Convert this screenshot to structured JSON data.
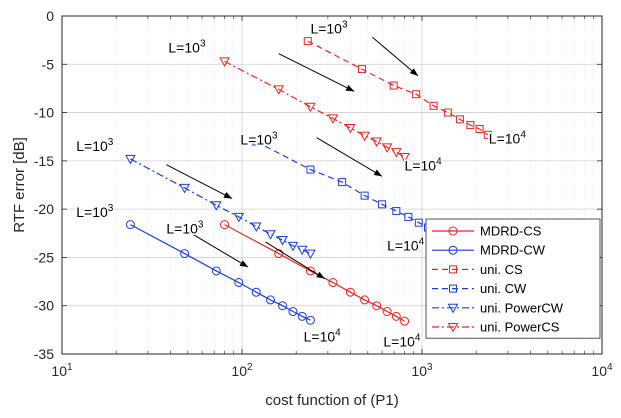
{
  "chart_data": {
    "type": "line",
    "title": "",
    "xlabel": "cost function of (P1)",
    "ylabel": "RTF error [dB]",
    "xscale": "log",
    "xlim": [
      10,
      10000
    ],
    "ylim": [
      -35,
      0
    ],
    "grid": true,
    "legend_position": "bottom-right",
    "x_ticks": [
      {
        "value": 10,
        "base": "10",
        "exp": "1"
      },
      {
        "value": 100,
        "base": "10",
        "exp": "2"
      },
      {
        "value": 1000,
        "base": "10",
        "exp": "3"
      },
      {
        "value": 10000,
        "base": "10",
        "exp": "4"
      }
    ],
    "y_ticks": [
      -35,
      -30,
      -25,
      -20,
      -15,
      -10,
      -5,
      0
    ],
    "series": [
      {
        "name": "MDRD-CS",
        "color": "#e8261f",
        "dash": "solid",
        "marker": "circle",
        "x": [
          80,
          160,
          240,
          320,
          400,
          480,
          560,
          640,
          720,
          800
        ],
        "y": [
          -21.6,
          -24.6,
          -26.4,
          -27.6,
          -28.6,
          -29.4,
          -30.0,
          -30.6,
          -31.1,
          -31.6
        ]
      },
      {
        "name": "MDRD-CW",
        "color": "#1a3fe0",
        "dash": "solid",
        "marker": "circle",
        "x": [
          24,
          48,
          72,
          96,
          120,
          144,
          168,
          192,
          216,
          240
        ],
        "y": [
          -21.6,
          -24.6,
          -26.4,
          -27.6,
          -28.6,
          -29.4,
          -30.0,
          -30.6,
          -31.1,
          -31.5
        ]
      },
      {
        "name": "uni. CS",
        "color": "#e8261f",
        "dash": "dashed",
        "marker": "square",
        "x": [
          232,
          464,
          696,
          928,
          1160,
          1392,
          1624,
          1856,
          2088,
          2320
        ],
        "y": [
          -2.6,
          -5.5,
          -7.2,
          -8.1,
          -9.3,
          -10.0,
          -10.7,
          -11.3,
          -11.7,
          -12.3
        ]
      },
      {
        "name": "uni. CW",
        "color": "#1a3fe0",
        "dash": "dashed",
        "marker": "square",
        "x": [
          120,
          240,
          360,
          480,
          600,
          720,
          840,
          960,
          1080,
          1200
        ],
        "y": [
          -13.0,
          -15.9,
          -17.2,
          -18.6,
          -19.5,
          -20.2,
          -20.8,
          -21.4,
          -21.9,
          -22.3
        ]
      },
      {
        "name": "uni. PowerCW",
        "color": "#1a3fe0",
        "dash": "dashdot",
        "marker": "triangle-down",
        "x": [
          24,
          48,
          72,
          96,
          120,
          144,
          168,
          192,
          216,
          240
        ],
        "y": [
          -14.8,
          -17.8,
          -19.6,
          -20.8,
          -21.8,
          -22.6,
          -23.2,
          -23.8,
          -24.2,
          -24.6
        ]
      },
      {
        "name": "uni. PowerCS",
        "color": "#e8261f",
        "dash": "dashdot",
        "marker": "triangle-down",
        "x": [
          80,
          160,
          240,
          320,
          400,
          480,
          560,
          640,
          720,
          800
        ],
        "y": [
          -4.7,
          -7.6,
          -9.4,
          -10.6,
          -11.6,
          -12.4,
          -13.0,
          -13.6,
          -14.1,
          -14.6
        ]
      }
    ],
    "annotations": [
      {
        "base": "L=10",
        "exp": "3",
        "x": 240,
        "y": -1.8
      },
      {
        "base": "L=10",
        "exp": "3",
        "x": 39,
        "y": -3.8
      },
      {
        "base": "L=10",
        "exp": "3",
        "x": 98,
        "y": -13.3
      },
      {
        "base": "L=10",
        "exp": "3",
        "x": 12,
        "y": -14.0
      },
      {
        "base": "L=10",
        "exp": "3",
        "x": 12,
        "y": -20.8
      },
      {
        "base": "L=10",
        "exp": "3",
        "x": 38,
        "y": -22.5
      },
      {
        "base": "L=10",
        "exp": "4",
        "x": 2350,
        "y": -13.2
      },
      {
        "base": "L=10",
        "exp": "4",
        "x": 800,
        "y": -16.0
      },
      {
        "base": "L=10",
        "exp": "4",
        "x": 640,
        "y": -24.3
      },
      {
        "base": "L=10",
        "exp": "4",
        "x": 220,
        "y": -33.7
      },
      {
        "base": "L=10",
        "exp": "4",
        "x": 610,
        "y": -34.2
      }
    ],
    "arrows": [
      {
        "x1": 530,
        "y1": -2.2,
        "x2": 950,
        "y2": -6.2
      },
      {
        "x1": 160,
        "y1": -3.9,
        "x2": 420,
        "y2": -7.8
      },
      {
        "x1": 260,
        "y1": -12.6,
        "x2": 600,
        "y2": -16.6
      },
      {
        "x1": 38,
        "y1": -15.4,
        "x2": 88,
        "y2": -18.9
      },
      {
        "x1": 48,
        "y1": -22.1,
        "x2": 108,
        "y2": -26.0
      },
      {
        "x1": 135,
        "y1": -23.4,
        "x2": 288,
        "y2": -27.2
      }
    ]
  }
}
